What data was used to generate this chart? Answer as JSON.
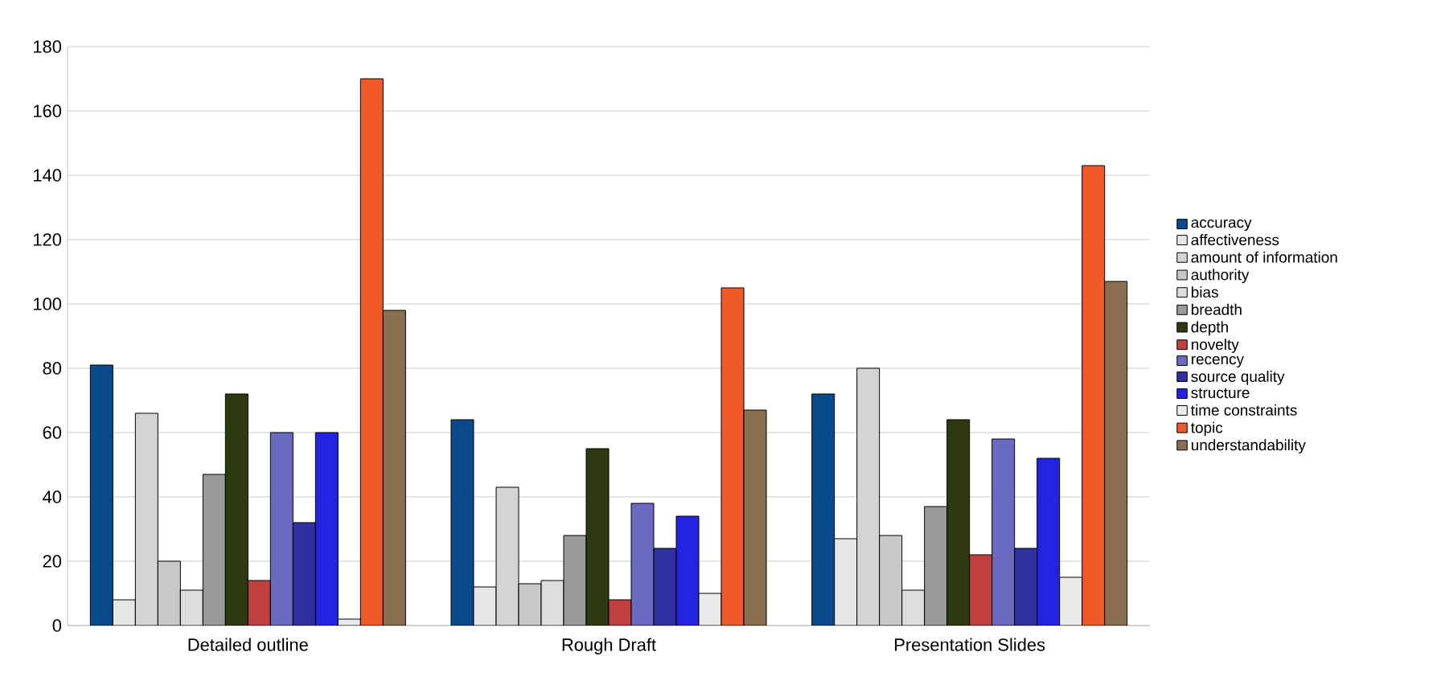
{
  "chart_data": {
    "type": "bar",
    "categories": [
      "Detailed outline",
      "Rough Draft",
      "Presentation Slides"
    ],
    "series": [
      {
        "name": "accuracy",
        "color": "#0a4a8a",
        "values": [
          81,
          64,
          72
        ]
      },
      {
        "name": "affectiveness",
        "color": "#e6e6e6",
        "values": [
          8,
          12,
          27
        ]
      },
      {
        "name": "amount of information",
        "color": "#d4d4d4",
        "values": [
          66,
          43,
          80
        ]
      },
      {
        "name": "authority",
        "color": "#c8c8c8",
        "values": [
          20,
          13,
          28
        ]
      },
      {
        "name": "bias",
        "color": "#dddddd",
        "values": [
          11,
          14,
          11
        ]
      },
      {
        "name": "breadth",
        "color": "#9a9a9a",
        "values": [
          47,
          28,
          37
        ]
      },
      {
        "name": "depth",
        "color": "#2d3a0f",
        "values": [
          72,
          55,
          64
        ]
      },
      {
        "name": "novelty",
        "color": "#c04040",
        "values": [
          14,
          8,
          22
        ]
      },
      {
        "name": "recency",
        "color": "#6a6ac0",
        "values": [
          60,
          38,
          58
        ]
      },
      {
        "name": "source quality",
        "color": "#3030a0",
        "values": [
          32,
          24,
          24
        ]
      },
      {
        "name": "structure",
        "color": "#2424e0",
        "values": [
          60,
          34,
          52
        ]
      },
      {
        "name": "time constraints",
        "color": "#ebebeb",
        "values": [
          2,
          10,
          15
        ]
      },
      {
        "name": "topic",
        "color": "#f05a28",
        "values": [
          170,
          105,
          143
        ]
      },
      {
        "name": "understandability",
        "color": "#8a7050",
        "values": [
          98,
          67,
          107
        ]
      }
    ],
    "ylim": [
      0,
      180
    ],
    "yticks": [
      0,
      20,
      40,
      60,
      80,
      100,
      120,
      140,
      160,
      180
    ],
    "grid": "y",
    "legend": "right"
  }
}
